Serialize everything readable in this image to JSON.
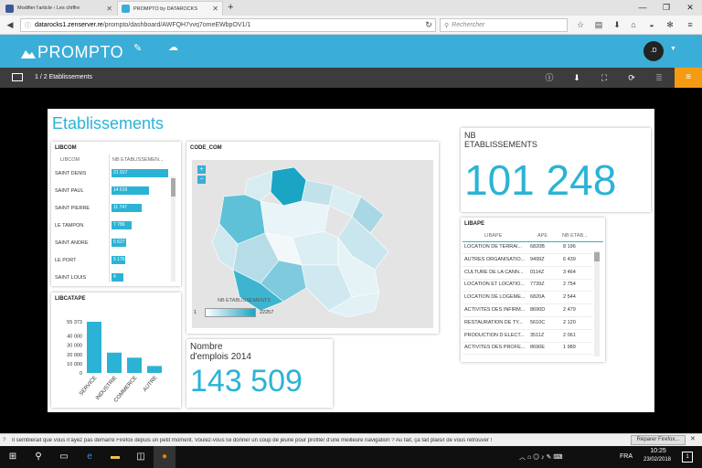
{
  "browser": {
    "tabs": [
      {
        "title": "Modifier l'article ‹ Les chiffre",
        "active": false
      },
      {
        "title": "PROMPTO by DATAROCKS",
        "active": true
      }
    ],
    "new_tab": "+",
    "url_host": "datarocks1.zenserver.re",
    "url_path": "/prompto/dashboard/AWFQH7vvq7omeEWbpOV1/1",
    "search_placeholder": "Rechercher"
  },
  "app": {
    "logo_text": "PROMPTO",
    "user_initials": ".D",
    "page_indicator": "1 / 2 Etablissements",
    "accent": "#3aaed8"
  },
  "dashboard": {
    "title": "Etablissements",
    "libcom": {
      "title": "LIBCOM",
      "col1": "LIBCOM",
      "col2": "NB ETABLISSEMEN...",
      "rows": [
        {
          "name": "SAINT DENIS",
          "value": "21 917",
          "v": 21917
        },
        {
          "name": "SAINT PAUL",
          "value": "14 619",
          "v": 14619
        },
        {
          "name": "SAINT PIERRE",
          "value": "11 747",
          "v": 11747
        },
        {
          "name": "LE TAMPON",
          "value": "7 786",
          "v": 7786
        },
        {
          "name": "SAINT ANDRE",
          "value": "5 627",
          "v": 5627
        },
        {
          "name": "LE PORT",
          "value": "5 176",
          "v": 5176
        },
        {
          "name": "SAINT LOUIS",
          "value": "4 723",
          "v": 4723
        }
      ]
    },
    "map": {
      "title": "CODE_COM",
      "zoom_in": "+",
      "zoom_out": "−",
      "legend_title": "NB ETABLISSEMENTS",
      "legend_min": "1",
      "legend_max": "22257"
    },
    "kpi_etab": {
      "label_line1": "NB",
      "label_line2": "ETABLISSEMENTS",
      "value": "101 248"
    },
    "libape": {
      "title": "LIBAPE",
      "col1": "LIBAPE",
      "col2": "APE",
      "col3": "NB ETAB...",
      "rows": [
        {
          "name": "LOCATION DE TERRAI...",
          "ape": "6820B",
          "value": "8 196"
        },
        {
          "name": "AUTRES ORGANISATIO...",
          "ape": "9499Z",
          "value": "6 439"
        },
        {
          "name": "CULTURE DE LA CANN...",
          "ape": "0114Z",
          "value": "3 464"
        },
        {
          "name": "LOCATION ET LOCATIO...",
          "ape": "7739Z",
          "value": "2 754"
        },
        {
          "name": "LOCATION DE LOGEME...",
          "ape": "6820A",
          "value": "2 544"
        },
        {
          "name": "ACTIVITES DES INFIRM...",
          "ape": "8690D",
          "value": "2 479"
        },
        {
          "name": "RESTAURATION DE TY...",
          "ape": "5610C",
          "value": "2 120"
        },
        {
          "name": "PRODUCTION D ELECT...",
          "ape": "3511Z",
          "value": "2 061"
        },
        {
          "name": "ACTIVITES DES PROFE...",
          "ape": "8690E",
          "value": "1 989"
        }
      ]
    },
    "libcatape": {
      "title": "LIBCATAPE",
      "ticks": [
        "55 373",
        "40 000",
        "30 000",
        "20 000",
        "10 000",
        "0"
      ]
    },
    "kpi_emplois": {
      "label_line1": "Nombre",
      "label_line2": "d'emplois 2014",
      "value": "143 509"
    }
  },
  "chart_data": {
    "type": "bar",
    "title": "LIBCATAPE",
    "categories": [
      "SERVICE",
      "INDUSTRIE",
      "COMMERCE",
      "AUTRE"
    ],
    "values": [
      55373,
      22000,
      16500,
      7500
    ],
    "ylim": [
      0,
      55373
    ],
    "color": "#2bb3d5"
  },
  "notification": {
    "text": "Il semblerait que vous n'ayez pas démarré Firefox depuis un petit moment. Voulez-vous lui donner un coup de jeune pour profiter d'une meilleure navigation ? Au fait, ça fait plaisir de vous retrouver !",
    "button": "Réparer Firefox..."
  },
  "taskbar": {
    "lang": "FRA",
    "time": "10:25",
    "date": "23/02/2018",
    "notif_count": "1"
  }
}
